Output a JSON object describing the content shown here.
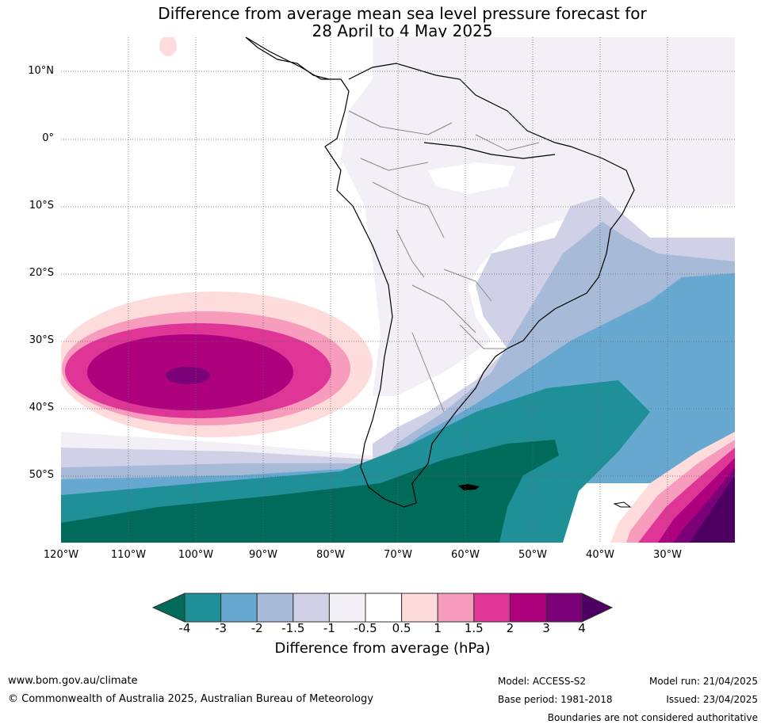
{
  "title_line1": "Difference from average mean sea level pressure forecast for",
  "title_line2": "28 April to 4 May 2025",
  "lat_labels": [
    "10°N",
    "0°",
    "10°S",
    "20°S",
    "30°S",
    "40°S",
    "50°S"
  ],
  "lon_labels": [
    "120°W",
    "110°W",
    "100°W",
    "90°W",
    "80°W",
    "70°W",
    "60°W",
    "50°W",
    "40°W",
    "30°W"
  ],
  "colorbar": {
    "ticks": [
      "-4",
      "-3",
      "-2",
      "-1.5",
      "-1",
      "-0.5",
      "0.5",
      "1",
      "1.5",
      "2",
      "3",
      "4"
    ],
    "colors": [
      "#006b5a",
      "#1f9098",
      "#66a8cf",
      "#a7bbd8",
      "#d0d1e6",
      "#f2eff6",
      "#ffffff",
      "#fddcdb",
      "#f89cbd",
      "#de3597",
      "#ad017e",
      "#7a0177",
      "#4e0062"
    ],
    "title": "Difference from average (hPa)"
  },
  "footer": {
    "website": "www.bom.gov.au/climate",
    "copyright": "© Commonwealth of Australia 2025, Australian Bureau of Meteorology",
    "model": "Model: ACCESS-S2",
    "base_period": "Base period: 1981-2018",
    "model_run": "Model run: 21/04/2025",
    "issued": "Issued: 23/04/2025",
    "disclaimer": "Boundaries are not considered authoritative"
  }
}
